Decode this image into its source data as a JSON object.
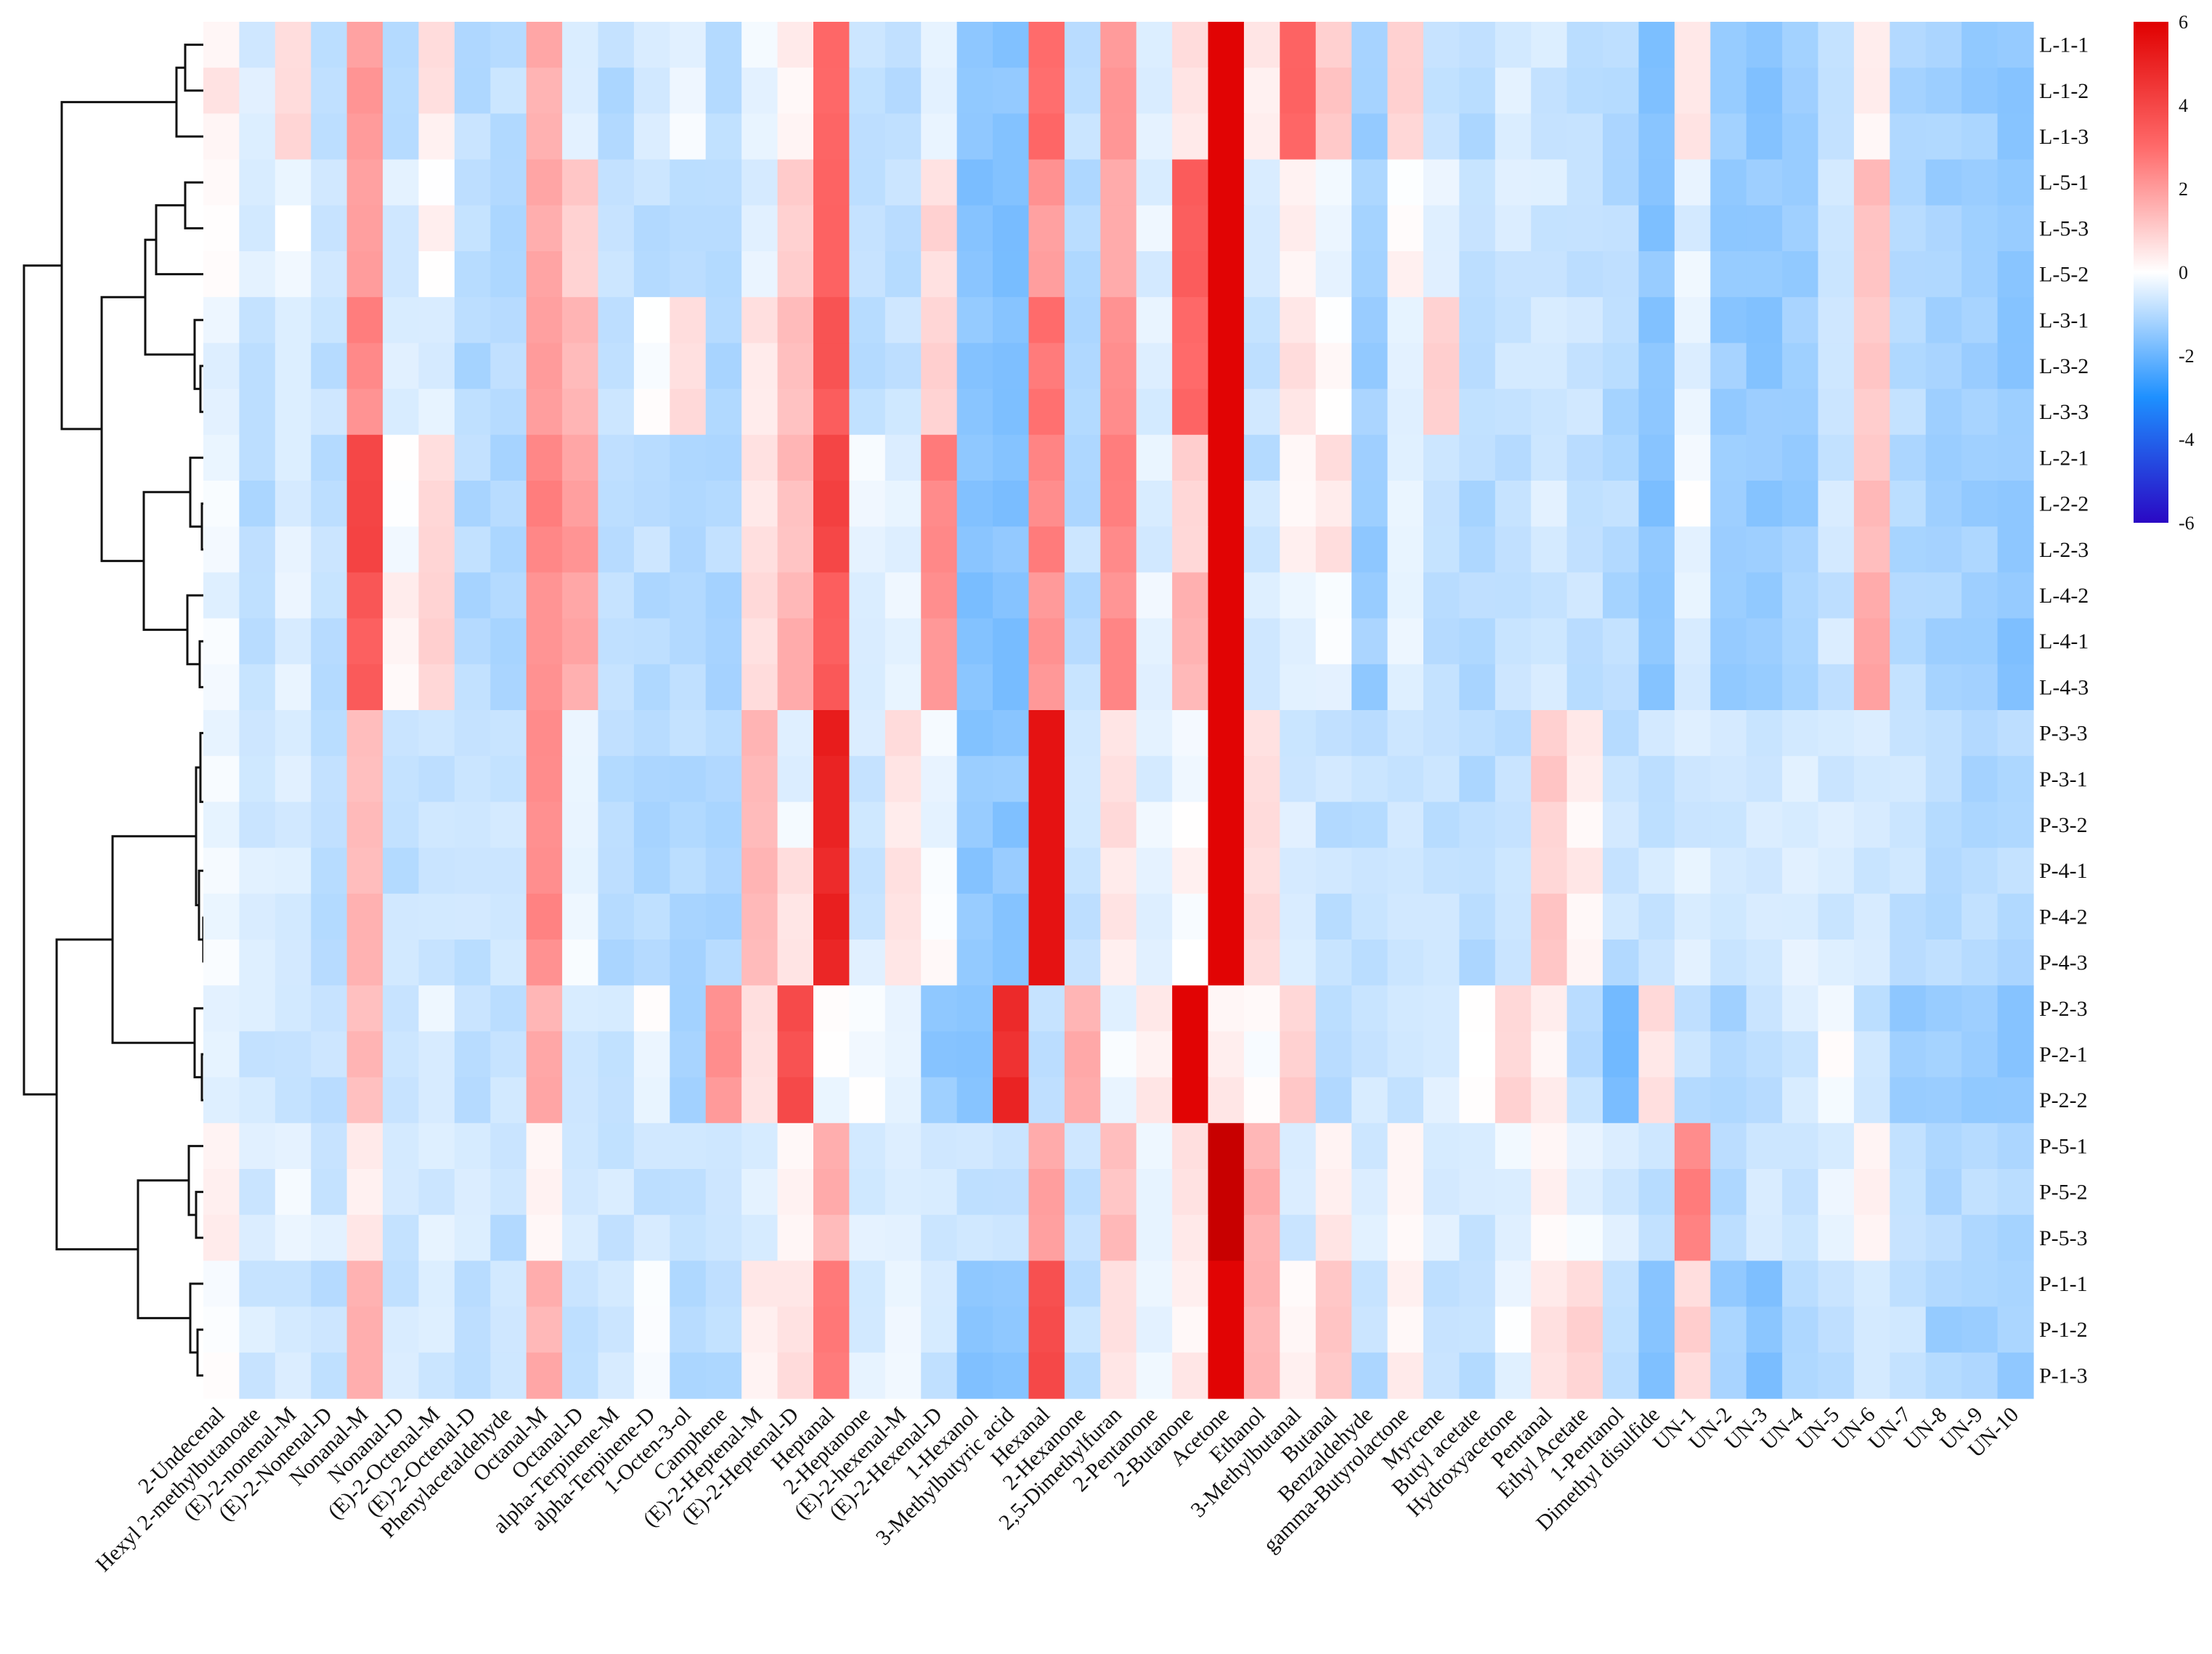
{
  "chart_data": {
    "type": "heatmap",
    "title": "",
    "xlabel": "",
    "ylabel": "",
    "color_scale": {
      "min": -6,
      "max": 6,
      "ticks": [
        "6",
        "4",
        "2",
        "0",
        "-2",
        "-4",
        "-6"
      ],
      "colors": {
        "low": "#2a08c4",
        "lowmid": "#1e90ff",
        "mid": "#ffffff",
        "highmid": "#ff6a6a",
        "high": "#e00000"
      }
    },
    "dendrogram": "hierarchical clustering of samples (left side)",
    "rows": [
      "L-1-1",
      "L-1-2",
      "L-1-3",
      "L-5-1",
      "L-5-3",
      "L-5-2",
      "L-3-1",
      "L-3-2",
      "L-3-3",
      "L-2-1",
      "L-2-2",
      "L-2-3",
      "L-4-2",
      "L-4-1",
      "L-4-3",
      "P-3-3",
      "P-3-1",
      "P-3-2",
      "P-4-1",
      "P-4-2",
      "P-4-3",
      "P-2-3",
      "P-2-1",
      "P-2-2",
      "P-5-1",
      "P-5-2",
      "P-5-3",
      "P-1-1",
      "P-1-2",
      "P-1-3"
    ],
    "columns": [
      "2-Undecenal",
      "Hexyl 2-methylbutanoate",
      "(E)-2-nonenal-M",
      "(E)-2-Nonenal-D",
      "Nonanal-M",
      "Nonanal-D",
      "(E)-2-Octenal-M",
      "(E)-2-Octenal-D",
      "Phenylacetaldehyde",
      "Octanal-M",
      "Octanal-D",
      "alpha-Terpinene-M",
      "alpha-Terpinene-D",
      "1-Octen-3-ol",
      "Camphene",
      "(E)-2-Heptenal-M",
      "(E)-2-Heptenal-D",
      "Heptanal",
      "2-Heptanone",
      "(E)-2-hexenal-M",
      "(E)-2-Hexenal-D",
      "1-Hexanol",
      "3-Methylbutyric acid",
      "Hexanal",
      "2-Hexanone",
      "2,5-Dimethylfuran",
      "2-Pentanone",
      "2-Butanone",
      "Acetone",
      "Ethanol",
      "3-Methylbutanal",
      "Butanal",
      "Benzaldehyde",
      "gamma-Butyrolactone",
      "Myrcene",
      "Butyl acetate",
      "Hydroxyacetone",
      "Pentanal",
      "Ethyl Acetate",
      "1-Pentanol",
      "Dimethyl disulfide",
      "UN-1",
      "UN-2",
      "UN-3",
      "UN-4",
      "UN-5",
      "UN-6",
      "UN-7",
      "UN-8",
      "UN-9",
      "UN-10"
    ],
    "profiles": {
      "L1": [
        0.4,
        -0.5,
        0.9,
        -0.8,
        2.0,
        -0.8,
        0.5,
        -0.9,
        -0.9,
        1.6,
        -0.6,
        -0.9,
        -0.5,
        -0.3,
        -1.0,
        -0.2,
        0.2,
        3.0,
        -0.8,
        -1.0,
        -0.2,
        -1.6,
        -1.6,
        3.0,
        -0.9,
        2.1,
        -0.4,
        0.5,
        5.9,
        0.3,
        3.3,
        1.0,
        -1.3,
        0.9,
        -0.8,
        -0.9,
        -0.5,
        -0.6,
        -0.8,
        -1.0,
        -1.8,
        0.6,
        -1.4,
        -1.5,
        -1.3,
        -0.7,
        0.3,
        -1.0,
        -1.2,
        -1.3,
        -1.5
      ],
      "L5": [
        0.1,
        -0.5,
        -0.2,
        -0.8,
        2.1,
        -0.5,
        0.2,
        -0.9,
        -0.9,
        1.8,
        1.0,
        -0.9,
        -0.9,
        -0.9,
        -1.0,
        -0.4,
        1.0,
        3.0,
        -0.8,
        -0.8,
        0.8,
        -1.6,
        -1.6,
        2.0,
        -0.9,
        1.8,
        -0.4,
        3.3,
        5.9,
        -0.7,
        0.4,
        -0.3,
        -1.3,
        0.1,
        -0.3,
        -0.9,
        -0.6,
        -0.6,
        -0.8,
        -1.0,
        -1.6,
        -0.4,
        -1.4,
        -1.5,
        -1.3,
        -0.7,
        1.3,
        -1.0,
        -1.2,
        -1.3,
        -1.5
      ],
      "L3": [
        -0.3,
        -0.9,
        -0.5,
        -0.8,
        2.4,
        -0.6,
        -0.4,
        -1.0,
        -1.0,
        2.0,
        1.4,
        -0.9,
        0.1,
        0.8,
        -1.0,
        0.6,
        1.3,
        3.5,
        -0.8,
        -0.8,
        1.0,
        -1.6,
        -1.6,
        2.8,
        -0.9,
        2.4,
        -0.4,
        3.0,
        5.9,
        -0.7,
        0.5,
        0.2,
        -1.3,
        -0.4,
        0.8,
        -1.0,
        -0.8,
        -0.6,
        -0.8,
        -1.0,
        -1.6,
        -0.4,
        -1.4,
        -1.5,
        -1.3,
        -0.7,
        1.0,
        -1.0,
        -1.2,
        -1.3,
        -1.5
      ],
      "L2": [
        -0.3,
        -0.9,
        -0.5,
        -0.8,
        4.0,
        -0.2,
        0.7,
        -1.0,
        -1.0,
        2.5,
        2.0,
        -0.9,
        -0.8,
        -0.9,
        -1.0,
        0.6,
        1.3,
        4.0,
        -0.3,
        -0.3,
        2.5,
        -1.6,
        -1.6,
        2.5,
        -0.9,
        2.5,
        -0.4,
        1.0,
        5.9,
        -0.8,
        0.2,
        0.5,
        -1.3,
        -0.4,
        -0.8,
        -1.0,
        -0.8,
        -0.6,
        -0.8,
        -1.0,
        -1.6,
        -0.2,
        -1.4,
        -1.5,
        -1.3,
        -0.7,
        1.3,
        -1.0,
        -1.2,
        -1.3,
        -1.5
      ],
      "L4": [
        -0.3,
        -0.9,
        -0.4,
        -0.8,
        3.5,
        0.2,
        0.8,
        -1.0,
        -1.0,
        2.0,
        1.7,
        -0.9,
        -0.9,
        -0.9,
        -1.0,
        0.7,
        1.5,
        3.3,
        -0.5,
        -0.4,
        2.2,
        -1.6,
        -1.6,
        2.0,
        -0.9,
        2.3,
        -0.4,
        1.6,
        5.9,
        -0.6,
        -0.4,
        -0.2,
        -1.3,
        -0.3,
        -0.8,
        -1.0,
        -0.8,
        -0.6,
        -0.8,
        -1.0,
        -1.6,
        -0.5,
        -1.4,
        -1.5,
        -1.3,
        -0.7,
        1.8,
        -1.0,
        -1.2,
        -1.3,
        -1.5
      ],
      "P3": [
        -0.3,
        -0.6,
        -0.6,
        -0.8,
        1.4,
        -0.8,
        -0.8,
        -0.8,
        -0.8,
        2.4,
        -0.4,
        -1.0,
        -1.0,
        -1.0,
        -1.0,
        1.3,
        -0.3,
        5.0,
        -0.6,
        0.5,
        -0.2,
        -1.5,
        -1.5,
        5.5,
        -0.8,
        0.6,
        -0.4,
        -0.2,
        5.9,
        0.8,
        -0.6,
        -0.8,
        -0.8,
        -0.7,
        -0.8,
        -1.0,
        -0.8,
        1.0,
        0.3,
        -0.8,
        -0.7,
        -0.5,
        -0.6,
        -0.7,
        -0.5,
        -0.6,
        -0.7,
        -0.8,
        -1.0,
        -1.0,
        -1.0
      ],
      "P4": [
        -0.2,
        -0.6,
        -0.6,
        -0.8,
        1.4,
        -0.8,
        -0.8,
        -0.8,
        -0.8,
        2.4,
        -0.2,
        -1.0,
        -1.0,
        -1.0,
        -1.0,
        1.3,
        0.5,
        5.0,
        -0.6,
        0.5,
        0.1,
        -1.5,
        -1.5,
        5.5,
        -0.8,
        0.5,
        -0.4,
        0.1,
        5.9,
        0.8,
        -0.6,
        -0.8,
        -0.8,
        -0.7,
        -0.8,
        -1.0,
        -0.8,
        1.0,
        0.3,
        -0.8,
        -0.7,
        -0.5,
        -0.6,
        -0.7,
        -0.4,
        -0.6,
        -0.7,
        -0.8,
        -1.0,
        -1.0,
        -1.0
      ],
      "P2": [
        -0.4,
        -0.6,
        -0.6,
        -0.8,
        1.3,
        -0.8,
        -0.4,
        -0.8,
        -0.8,
        1.7,
        -0.6,
        -0.6,
        -0.1,
        -1.3,
        2.2,
        0.6,
        3.8,
        -0.1,
        -0.2,
        -0.5,
        -1.5,
        -1.5,
        4.8,
        -0.8,
        1.6,
        -0.3,
        0.3,
        5.9,
        0.4,
        0.1,
        1.0,
        -1.1,
        -0.7,
        -0.6,
        -0.6,
        0.1,
        0.8,
        0.2,
        -0.8,
        -1.8,
        0.6,
        -0.9,
        -1.1,
        -0.9,
        -0.6,
        0.0,
        -0.8,
        -1.3,
        -1.3,
        -1.4,
        -1.4
      ],
      "P5": [
        0.4,
        -0.6,
        -0.3,
        -0.6,
        0.3,
        -0.7,
        -0.5,
        -0.6,
        -0.8,
        0.2,
        -0.7,
        -0.7,
        -0.7,
        -0.7,
        -0.7,
        -0.5,
        0.3,
        1.6,
        -0.5,
        -0.5,
        -0.7,
        -0.7,
        -0.7,
        1.8,
        -0.7,
        1.3,
        -0.4,
        0.6,
        7.0,
        1.5,
        -0.6,
        0.4,
        -0.6,
        0.3,
        -0.5,
        -0.7,
        -0.3,
        0.2,
        -0.3,
        -0.6,
        -0.8,
        2.5,
        -0.9,
        -0.6,
        -0.8,
        -0.4,
        0.3,
        -0.8,
        -1.0,
        -1.0,
        -1.0
      ],
      "P1": [
        0.1,
        -0.6,
        -0.6,
        -0.8,
        1.6,
        -0.7,
        -0.6,
        -0.8,
        -0.8,
        1.6,
        -0.7,
        -0.6,
        -0.2,
        -0.9,
        -0.9,
        0.3,
        0.6,
        2.7,
        -0.5,
        -0.3,
        -0.7,
        -1.6,
        -1.6,
        3.8,
        -0.8,
        0.7,
        -0.4,
        0.3,
        5.9,
        1.5,
        0.3,
        1.0,
        -0.9,
        0.2,
        -0.8,
        -0.8,
        -0.2,
        0.6,
        0.8,
        -0.9,
        -1.7,
        0.8,
        -1.3,
        -1.7,
        -1.0,
        -0.8,
        -0.6,
        -0.8,
        -1.2,
        -1.2,
        -1.3
      ]
    }
  }
}
